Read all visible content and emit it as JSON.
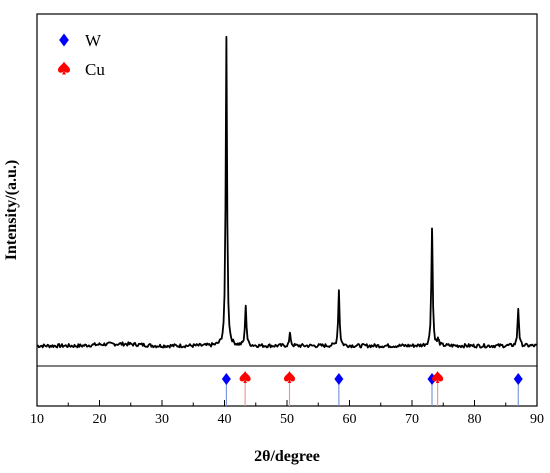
{
  "chart_data": {
    "type": "line",
    "title": "",
    "xlabel": "2θ/degree",
    "ylabel": "Intensity/(a.u.)",
    "xlim": [
      10,
      90
    ],
    "xticks": [
      10,
      20,
      30,
      40,
      50,
      60,
      70,
      80,
      90
    ],
    "y_ticks_shown": false,
    "grid": false,
    "legend_position": "top-left",
    "series": [
      {
        "name": "",
        "color": "#000000",
        "baseline": 0.02,
        "peaks": [
          {
            "x": 40.3,
            "y": 1.0
          },
          {
            "x": 43.4,
            "y": 0.13
          },
          {
            "x": 50.5,
            "y": 0.04
          },
          {
            "x": 58.3,
            "y": 0.18
          },
          {
            "x": 73.2,
            "y": 0.38
          },
          {
            "x": 74.2,
            "y": 0.02
          },
          {
            "x": 87.0,
            "y": 0.12
          }
        ]
      }
    ],
    "reference_phases": [
      {
        "name": "W",
        "marker": "diamond",
        "color": "#0000ff",
        "positions": [
          40.3,
          58.3,
          73.2,
          87.0
        ]
      },
      {
        "name": "Cu",
        "marker": "spade",
        "color": "#ff0000",
        "positions": [
          43.3,
          50.4,
          74.1
        ]
      }
    ]
  }
}
